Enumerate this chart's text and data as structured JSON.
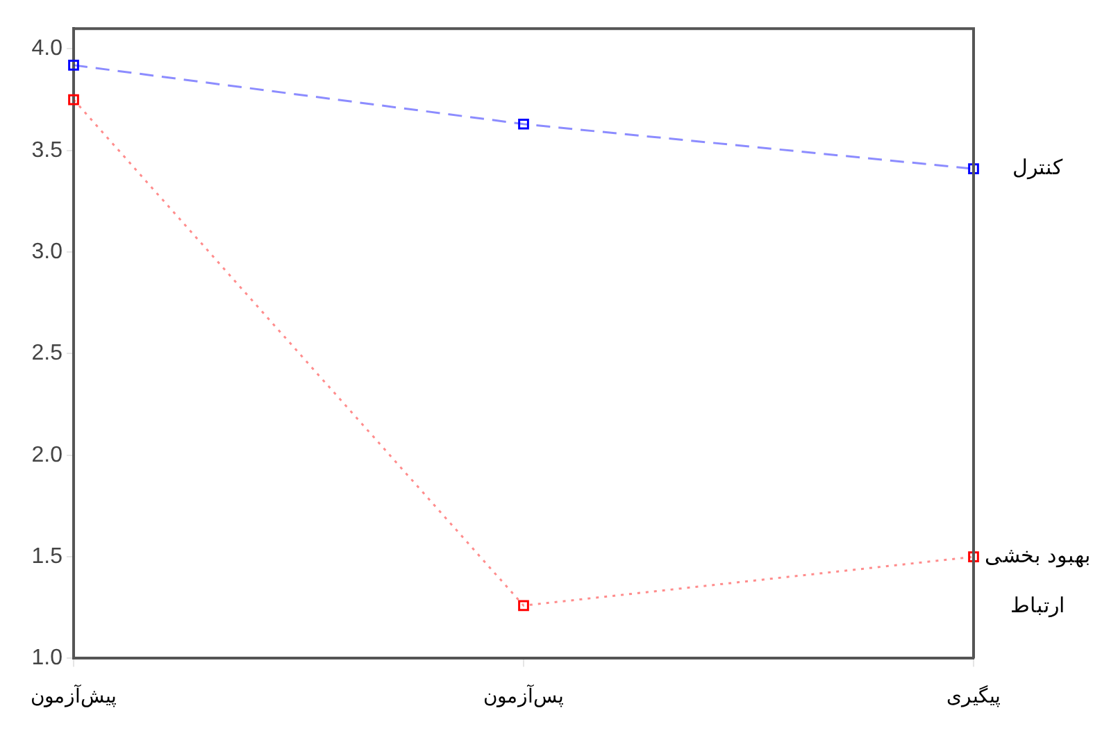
{
  "chart_data": {
    "type": "line",
    "categories": [
      "پیش‌آزمون",
      "پس‌آزمون",
      "پیگیری"
    ],
    "series": [
      {
        "name": "کنترل",
        "color": "#0000ff",
        "values": [
          3.92,
          3.63,
          3.41
        ],
        "line_style": "dashed"
      },
      {
        "name": "بهبود بخشی ارتباط",
        "color": "#ff0000",
        "values": [
          3.75,
          1.26,
          1.5
        ],
        "line_style": "dotted"
      }
    ],
    "ylim": [
      1.0,
      4.1
    ],
    "yticks": [
      {
        "value": 1.0,
        "label": "1.0"
      },
      {
        "value": 1.5,
        "label": "1.5"
      },
      {
        "value": 2.0,
        "label": "2.0"
      },
      {
        "value": 2.5,
        "label": "2.5"
      },
      {
        "value": 3.0,
        "label": "3.0"
      },
      {
        "value": 3.5,
        "label": "3.5"
      },
      {
        "value": 4.0,
        "label": "4.0"
      }
    ],
    "grid": false,
    "legend": false,
    "marker": "square"
  }
}
